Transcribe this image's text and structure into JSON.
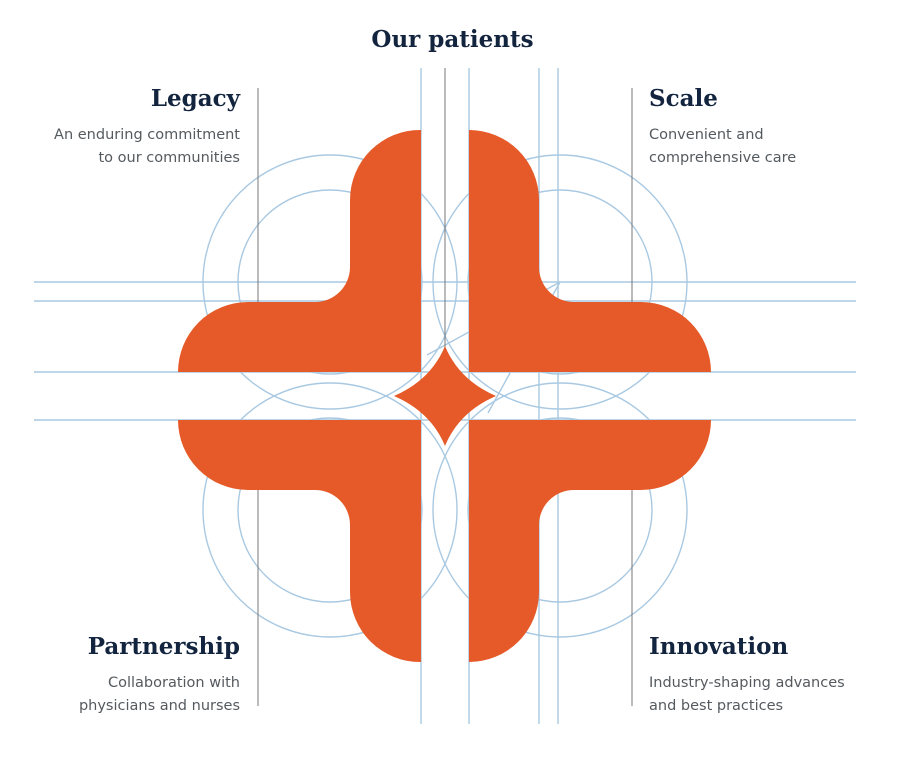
{
  "title": "Our patients",
  "pillars": {
    "legacy": {
      "heading": "Legacy",
      "line1": "An enduring commitment",
      "line2": "to our communities"
    },
    "scale": {
      "heading": "Scale",
      "line1": "Convenient and",
      "line2": "comprehensive care"
    },
    "partnership": {
      "heading": "Partnership",
      "line1": "Collaboration with",
      "line2": "physicians and nurses"
    },
    "innovation": {
      "heading": "Innovation",
      "line1": "Industry-shaping advances",
      "line2": "and best practices"
    }
  },
  "colors": {
    "accent": "#e55a28",
    "guide": "#a9c9e2",
    "divider": "#777777",
    "heading": "#13243f",
    "body": "#555a5f"
  }
}
